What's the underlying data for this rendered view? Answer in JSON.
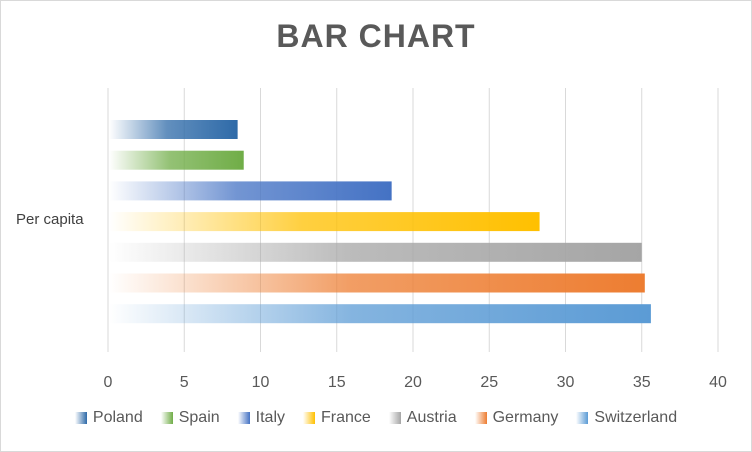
{
  "chart_data": {
    "type": "bar",
    "orientation": "horizontal",
    "title": "BAR CHART",
    "categories": [
      "Per capita"
    ],
    "series": [
      {
        "name": "Poland",
        "values": [
          8.5
        ],
        "color": "#2e6aa8"
      },
      {
        "name": "Spain",
        "values": [
          8.9
        ],
        "color": "#70ad47"
      },
      {
        "name": "Italy",
        "values": [
          18.6
        ],
        "color": "#4472c4"
      },
      {
        "name": "France",
        "values": [
          28.3
        ],
        "color": "#ffc000"
      },
      {
        "name": "Austria",
        "values": [
          35.0
        ],
        "color": "#a5a5a5"
      },
      {
        "name": "Germany",
        "values": [
          35.2
        ],
        "color": "#ed7d31"
      },
      {
        "name": "Switzerland",
        "values": [
          35.6
        ],
        "color": "#5b9bd5"
      }
    ],
    "xlim": [
      0,
      40
    ],
    "xticks": [
      "0",
      "5",
      "10",
      "15",
      "20",
      "25",
      "30",
      "35",
      "40"
    ],
    "grid": "vertical",
    "legend_position": "bottom"
  }
}
